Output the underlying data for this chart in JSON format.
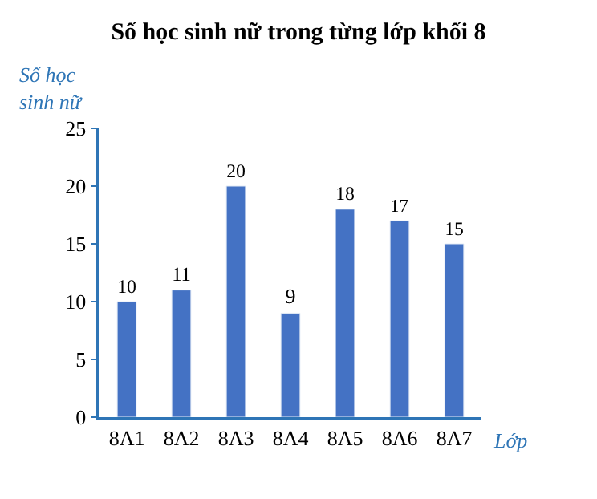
{
  "chart_data": {
    "type": "bar",
    "title": "Số học sinh nữ trong từng lớp khối 8",
    "xlabel": "Lớp",
    "ylabel": "Số học sinh nữ",
    "categories": [
      "8A1",
      "8A2",
      "8A3",
      "8A4",
      "8A5",
      "8A6",
      "8A7"
    ],
    "values": [
      10,
      11,
      20,
      9,
      18,
      17,
      15
    ],
    "color": "#4472c4",
    "ylim": [
      0,
      25
    ],
    "yticks": [
      0,
      5,
      10,
      15,
      20,
      25
    ],
    "legend": false,
    "data_labels": true
  }
}
